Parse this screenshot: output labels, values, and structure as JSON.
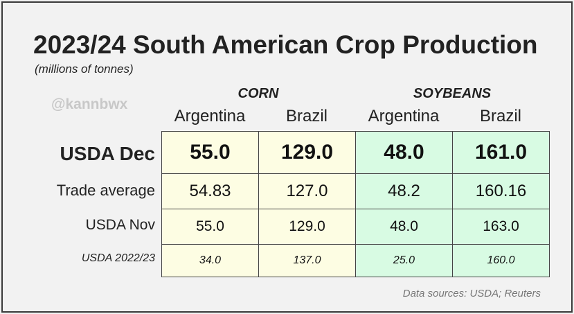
{
  "header": {
    "title": "2023/24 South American Crop Production",
    "subtitle": "(millions of tonnes)",
    "handle": "@kannbwx"
  },
  "footer": {
    "source": "Data sources: USDA; Reuters"
  },
  "colors": {
    "corn_fill": "#fdfde3",
    "soybeans_fill": "#d8fbe3",
    "border": "#444444"
  },
  "chart_data": {
    "type": "table",
    "title": "2023/24 South American Crop Production",
    "subtitle": "(millions of tonnes)",
    "column_groups": [
      {
        "label": "CORN",
        "columns": [
          "Argentina",
          "Brazil"
        ]
      },
      {
        "label": "SOYBEANS",
        "columns": [
          "Argentina",
          "Brazil"
        ]
      }
    ],
    "rows": [
      {
        "label": "USDA Dec",
        "values": [
          "55.0",
          "129.0",
          "48.0",
          "161.0"
        ]
      },
      {
        "label": "Trade average",
        "values": [
          "54.83",
          "127.0",
          "48.2",
          "160.16"
        ]
      },
      {
        "label": "USDA Nov",
        "values": [
          "55.0",
          "129.0",
          "48.0",
          "163.0"
        ]
      },
      {
        "label": "USDA 2022/23",
        "values": [
          "34.0",
          "137.0",
          "25.0",
          "160.0"
        ]
      }
    ]
  }
}
